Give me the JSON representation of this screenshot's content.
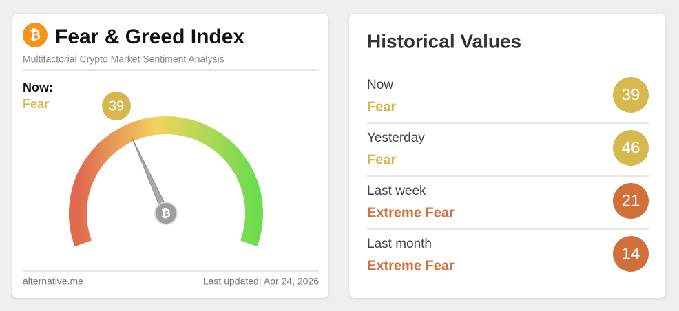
{
  "left": {
    "title": "Fear & Greed Index",
    "subtitle": "Multifactorial Crypto Market Sentiment Analysis",
    "now_label": "Now:",
    "classification": "Fear",
    "value": 39,
    "color": "#d6b84f",
    "source": "alternative.me",
    "last_updated": "Last updated: Apr 24, 2026"
  },
  "right": {
    "title": "Historical Values",
    "rows": [
      {
        "label": "Now",
        "classification": "Fear",
        "value": 39,
        "color": "#d6b84f"
      },
      {
        "label": "Yesterday",
        "classification": "Fear",
        "value": 46,
        "color": "#d6b84f"
      },
      {
        "label": "Last week",
        "classification": "Extreme Fear",
        "value": 21,
        "color": "#d0703a"
      },
      {
        "label": "Last month",
        "classification": "Extreme Fear",
        "value": 14,
        "color": "#d0703a"
      }
    ]
  }
}
